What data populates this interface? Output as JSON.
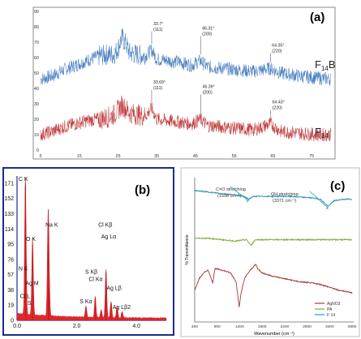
{
  "chart_data": [
    {
      "id": "a",
      "type": "line",
      "panel_label": "(a)",
      "xlim": [
        5,
        80
      ],
      "ylim": [
        0,
        90
      ],
      "x_ticks": [
        5,
        15,
        25,
        35,
        45,
        55,
        65,
        75
      ],
      "y_ticks": [
        0,
        10,
        20,
        30,
        40,
        50,
        60,
        70,
        80,
        90
      ],
      "grid": false,
      "series": [
        {
          "name": "F14B",
          "label_main": "F",
          "label_sub": "14",
          "label_suffix": "B",
          "color": "#4a7fc1",
          "points": [
            [
              5,
              46
            ],
            [
              8,
              48
            ],
            [
              11,
              52
            ],
            [
              14,
              55
            ],
            [
              17,
              58
            ],
            [
              20,
              61
            ],
            [
              22,
              62
            ],
            [
              24,
              62
            ],
            [
              25,
              66
            ],
            [
              26,
              73
            ],
            [
              27,
              69
            ],
            [
              28,
              63
            ],
            [
              30,
              62
            ],
            [
              32,
              61
            ],
            [
              33.7,
              65
            ],
            [
              35,
              59
            ],
            [
              38,
              58
            ],
            [
              41,
              57
            ],
            [
              44,
              55
            ],
            [
              46.31,
              58
            ],
            [
              48,
              54
            ],
            [
              52,
              53
            ],
            [
              56,
              52
            ],
            [
              60,
              51
            ],
            [
              64.35,
              53
            ],
            [
              67,
              50
            ],
            [
              72,
              48
            ],
            [
              76,
              47
            ],
            [
              80,
              46
            ]
          ]
        },
        {
          "name": "F14",
          "label_main": "F",
          "label_sub": "14",
          "label_suffix": "",
          "color": "#c0393b",
          "points": [
            [
              5,
              10
            ],
            [
              8,
              12
            ],
            [
              11,
              15
            ],
            [
              14,
              17
            ],
            [
              17,
              19
            ],
            [
              20,
              20
            ],
            [
              22,
              21
            ],
            [
              24,
              23
            ],
            [
              25,
              26
            ],
            [
              26,
              29
            ],
            [
              27,
              27
            ],
            [
              28,
              24
            ],
            [
              30,
              23
            ],
            [
              32,
              22
            ],
            [
              33.69,
              27
            ],
            [
              35,
              20
            ],
            [
              38,
              19
            ],
            [
              41,
              18
            ],
            [
              44,
              17
            ],
            [
              46.39,
              20
            ],
            [
              48,
              16
            ],
            [
              52,
              15
            ],
            [
              56,
              14
            ],
            [
              60,
              13
            ],
            [
              64.43,
              17
            ],
            [
              67,
              12
            ],
            [
              72,
              11
            ],
            [
              76,
              10
            ],
            [
              80,
              10
            ]
          ]
        }
      ],
      "annotations": [
        {
          "series": "F14B",
          "x": 33.7,
          "y": 78,
          "angle": "33.7°",
          "hkl": "(111)"
        },
        {
          "series": "F14B",
          "x": 46.31,
          "y": 75,
          "angle": "46.31°",
          "hkl": "(200)"
        },
        {
          "series": "F14B",
          "x": 64.35,
          "y": 64,
          "angle": "64.35°",
          "hkl": "(220)"
        },
        {
          "series": "F14",
          "x": 33.69,
          "y": 40,
          "angle": "33.69°",
          "hkl": "(111)"
        },
        {
          "series": "F14",
          "x": 46.39,
          "y": 37,
          "angle": "46.39°",
          "hkl": "(200)"
        },
        {
          "series": "F14",
          "x": 64.43,
          "y": 27,
          "angle": "64.43°",
          "hkl": "(220)"
        }
      ]
    },
    {
      "id": "b",
      "type": "bar",
      "panel_label": "(b)",
      "xlim": [
        0,
        5
      ],
      "ylim": [
        0,
        180
      ],
      "x_ticks": [
        0.0,
        2.0,
        4.0
      ],
      "x_tick_labels": [
        "0.0",
        "2.0",
        "4.0"
      ],
      "y_ticks": [
        0,
        19,
        38,
        57,
        76,
        95,
        114,
        133,
        152,
        171
      ],
      "grid": false,
      "peaks": [
        {
          "x": 0.28,
          "y": 171,
          "color": "#e0282c"
        },
        {
          "x": 0.52,
          "y": 95,
          "color": "#e0282c"
        },
        {
          "x": 1.04,
          "y": 112,
          "color": "#e0282c"
        },
        {
          "x": 1.07,
          "y": 40,
          "color": "#e0282c"
        },
        {
          "x": 2.31,
          "y": 14,
          "color": "#e0282c"
        },
        {
          "x": 2.62,
          "y": 26,
          "color": "#e0282c"
        },
        {
          "x": 2.82,
          "y": 10,
          "color": "#e0282c"
        },
        {
          "x": 2.98,
          "y": 60,
          "color": "#e0282c"
        },
        {
          "x": 3.15,
          "y": 20,
          "color": "#e0282c"
        },
        {
          "x": 3.35,
          "y": 14,
          "color": "#e0282c"
        },
        {
          "x": 3.52,
          "y": 8,
          "color": "#e0282c"
        }
      ],
      "element_labels": [
        {
          "text": "C  K",
          "x": 0.05,
          "y": 174
        },
        {
          "text": "Na K",
          "x": 0.95,
          "y": 117
        },
        {
          "text": "O  K",
          "x": 0.3,
          "y": 99
        },
        {
          "text": "Cl Kβ",
          "x": 2.72,
          "y": 117
        },
        {
          "text": "Ag Lα",
          "x": 2.82,
          "y": 102
        },
        {
          "text": "N  K",
          "x": 0.05,
          "y": 62
        },
        {
          "text": "Ag  M",
          "x": 0.28,
          "y": 44
        },
        {
          "text": "Cl L",
          "x": 0.1,
          "y": 28
        },
        {
          "text": "S",
          "x": 0.35,
          "y": 19
        },
        {
          "text": "S  Kβ",
          "x": 2.28,
          "y": 58
        },
        {
          "text": "Cl Kα",
          "x": 2.4,
          "y": 49
        },
        {
          "text": "S  Kα",
          "x": 2.1,
          "y": 21
        },
        {
          "text": "Ag Lβ",
          "x": 3.0,
          "y": 38
        },
        {
          "text": "Ag Lβ2",
          "x": 3.2,
          "y": 14
        }
      ]
    },
    {
      "id": "c",
      "type": "line",
      "panel_label": "(c)",
      "xlim": [
        400,
        3900
      ],
      "ylim": [
        0,
        100
      ],
      "x_ticks": [
        400,
        900,
        1400,
        1900,
        2400,
        2900,
        3400,
        3900
      ],
      "xlabel": "Wavenumber (cm⁻¹)",
      "ylabel": "% Transmittance",
      "grid": false,
      "legend_position": "bottom-right",
      "series": [
        {
          "name": "AgNO3",
          "color": "#a33b32",
          "points": [
            [
              400,
              22
            ],
            [
              500,
              30
            ],
            [
              600,
              34
            ],
            [
              700,
              36
            ],
            [
              800,
              27
            ],
            [
              850,
              37
            ],
            [
              1000,
              36
            ],
            [
              1200,
              34
            ],
            [
              1320,
              28
            ],
            [
              1390,
              10
            ],
            [
              1430,
              20
            ],
            [
              1520,
              31
            ],
            [
              1640,
              36
            ],
            [
              1760,
              40
            ],
            [
              1800,
              37
            ],
            [
              1900,
              34
            ],
            [
              2100,
              32
            ],
            [
              2400,
              30
            ],
            [
              2700,
              28
            ],
            [
              3000,
              27
            ],
            [
              3200,
              26
            ],
            [
              3400,
              24
            ],
            [
              3600,
              22
            ],
            [
              3800,
              21
            ],
            [
              3900,
              20
            ]
          ]
        },
        {
          "name": "PA",
          "color": "#7aaa3a",
          "points": [
            [
              400,
              58
            ],
            [
              700,
              58
            ],
            [
              1000,
              57
            ],
            [
              1300,
              56
            ],
            [
              1550,
              57
            ],
            [
              1650,
              53
            ],
            [
              1750,
              57
            ],
            [
              2000,
              57
            ],
            [
              2500,
              57
            ],
            [
              3000,
              57
            ],
            [
              3400,
              57
            ],
            [
              3900,
              57
            ]
          ]
        },
        {
          "name": "F 14",
          "color": "#2f93b5",
          "points": [
            [
              400,
              91
            ],
            [
              700,
              90
            ],
            [
              1000,
              89
            ],
            [
              1300,
              88
            ],
            [
              1500,
              87
            ],
            [
              1598,
              85
            ],
            [
              1700,
              87
            ],
            [
              2000,
              87
            ],
            [
              2500,
              87
            ],
            [
              3000,
              86
            ],
            [
              3200,
              85
            ],
            [
              3371,
              80
            ],
            [
              3500,
              84
            ],
            [
              3700,
              85
            ],
            [
              3900,
              85
            ]
          ]
        }
      ],
      "annotations": [
        {
          "text": "C=O stretching",
          "subtext": "(1598 cm⁻¹)",
          "target_x": 1598,
          "target_y": 85
        },
        {
          "text": "OH stretching",
          "subtext": "(3371 cm⁻¹)",
          "target_x": 3371,
          "target_y": 80
        }
      ]
    }
  ]
}
